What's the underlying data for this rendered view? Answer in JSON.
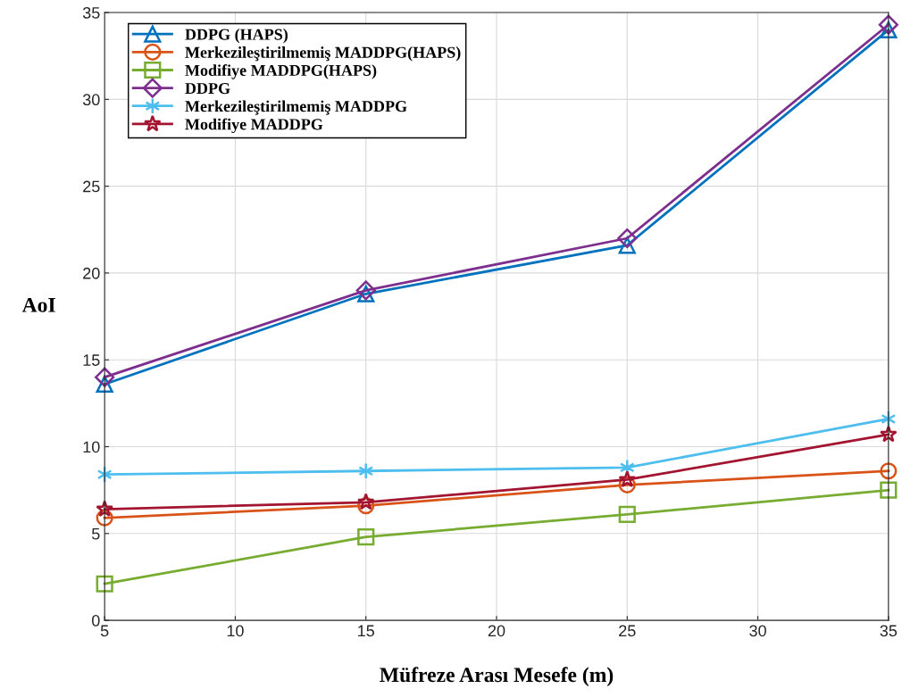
{
  "chart_data": {
    "type": "line",
    "xlabel": "Müfreze Arası Mesefe (m)",
    "ylabel": "AoI",
    "x": [
      5,
      15,
      25,
      35
    ],
    "xlim": [
      5,
      35
    ],
    "xticks": [
      5,
      10,
      15,
      20,
      25,
      30,
      35
    ],
    "ylim": [
      0,
      35
    ],
    "yticks": [
      0,
      5,
      10,
      15,
      20,
      25,
      30,
      35
    ],
    "grid": true,
    "legend": "top left",
    "line_style": "solid",
    "series": [
      {
        "name": "DDPG (HAPS)",
        "color": "#0072bd",
        "marker": "triangle",
        "values": [
          13.6,
          18.8,
          21.6,
          34.0
        ]
      },
      {
        "name": "Merkezileştirilmemiş MADDPG(HAPS)",
        "color": "#d95319",
        "marker": "circle",
        "values": [
          5.9,
          6.6,
          7.8,
          8.6
        ]
      },
      {
        "name": "Modifiye MADDPG(HAPS)",
        "color": "#77ac30",
        "marker": "square",
        "values": [
          2.1,
          4.8,
          6.1,
          7.5
        ]
      },
      {
        "name": "DDPG",
        "color": "#7e2f8e",
        "marker": "diamond",
        "values": [
          14.0,
          19.0,
          22.0,
          34.3
        ]
      },
      {
        "name": "Merkezileştirilmemiş MADDPG",
        "color": "#4dbeee",
        "marker": "cross",
        "values": [
          8.4,
          8.6,
          8.8,
          11.6
        ]
      },
      {
        "name": "Modifiye MADDPG",
        "color": "#a2142f",
        "marker": "star",
        "values": [
          6.4,
          6.8,
          8.1,
          10.7
        ]
      }
    ]
  }
}
